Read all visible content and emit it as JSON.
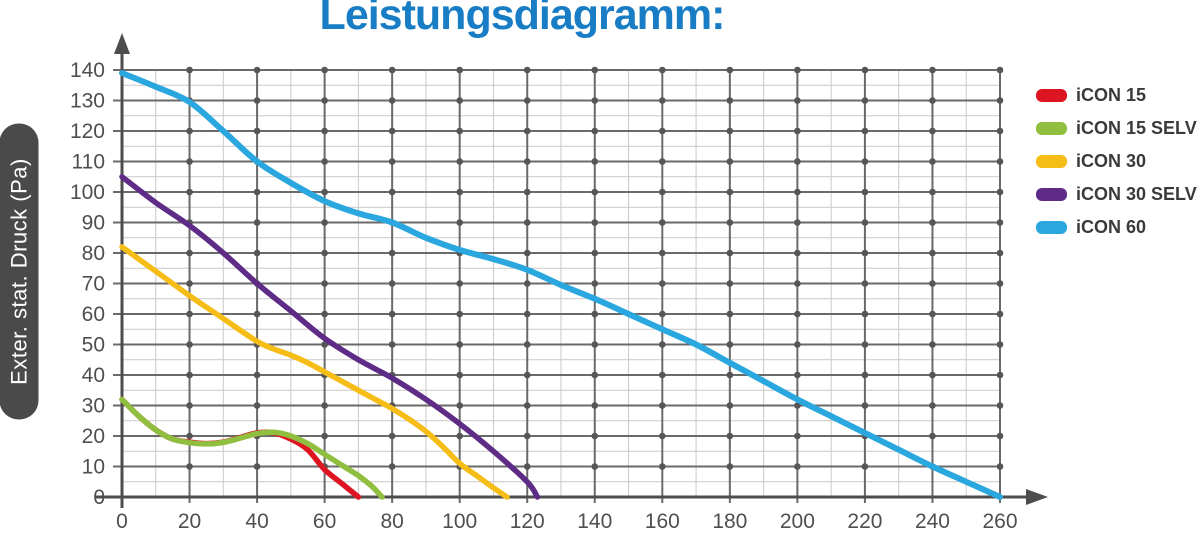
{
  "title": "Leistungsdiagramm:",
  "colors": {
    "title": "#187dc4",
    "axis": "#4d4d4d",
    "grid_major": "#6a6a6a",
    "grid_minor": "#c9c9c9",
    "grid_dot": "#565656",
    "tick_label": "#4f4f4f",
    "y_label_bg": "#4a4a4a",
    "y_label_text": "#ffffff",
    "legend_text": "#3a3a3a"
  },
  "y_axis": {
    "label": "Exter. stat. Druck (Pa)",
    "min": 0,
    "max": 140,
    "major_step": 10,
    "minor_step": 5
  },
  "x_axis": {
    "min": 0,
    "max": 260,
    "major_step": 20,
    "minor_step": 10
  },
  "legend": [
    {
      "label": "iCON 15",
      "color": "#dd1522"
    },
    {
      "label": "iCON 15 SELV",
      "color": "#90bf40"
    },
    {
      "label": "iCON 30",
      "color": "#f6bd17"
    },
    {
      "label": "iCON 30 SELV",
      "color": "#5e2b87"
    },
    {
      "label": "iCON 60",
      "color": "#2ba7e0"
    }
  ],
  "chart_data": {
    "type": "line",
    "title": "Leistungsdiagramm:",
    "xlabel": "",
    "ylabel": "Exter. stat. Druck (Pa)",
    "xlim": [
      0,
      260
    ],
    "ylim": [
      0,
      140
    ],
    "x_tick_step": 20,
    "y_tick_step": 10,
    "grid": true,
    "legend_position": "right",
    "series": [
      {
        "name": "iCON 15",
        "color": "#dd1522",
        "points": [
          [
            0,
            32
          ],
          [
            5,
            26.5
          ],
          [
            10,
            22
          ],
          [
            15,
            19
          ],
          [
            20,
            18
          ],
          [
            25,
            17.5
          ],
          [
            30,
            18
          ],
          [
            35,
            19.5
          ],
          [
            40,
            21
          ],
          [
            45,
            21
          ],
          [
            50,
            19
          ],
          [
            55,
            15.5
          ],
          [
            60,
            9
          ],
          [
            65,
            4.5
          ],
          [
            70,
            0
          ]
        ]
      },
      {
        "name": "iCON 15 SELV",
        "color": "#90bf40",
        "points": [
          [
            0,
            32
          ],
          [
            5,
            26.5
          ],
          [
            10,
            22
          ],
          [
            15,
            19
          ],
          [
            20,
            17.8
          ],
          [
            25,
            17.4
          ],
          [
            30,
            17.9
          ],
          [
            35,
            19.3
          ],
          [
            40,
            20.8
          ],
          [
            45,
            21.2
          ],
          [
            50,
            20
          ],
          [
            55,
            17.5
          ],
          [
            60,
            14
          ],
          [
            65,
            10.5
          ],
          [
            70,
            7
          ],
          [
            74,
            3.5
          ],
          [
            77,
            0
          ]
        ]
      },
      {
        "name": "iCON 30",
        "color": "#f6bd17",
        "points": [
          [
            0,
            82
          ],
          [
            10,
            74
          ],
          [
            20,
            66
          ],
          [
            30,
            58.5
          ],
          [
            40,
            51
          ],
          [
            45,
            48.5
          ],
          [
            50,
            46.5
          ],
          [
            55,
            44
          ],
          [
            60,
            41
          ],
          [
            65,
            38
          ],
          [
            70,
            35
          ],
          [
            75,
            32
          ],
          [
            80,
            29
          ],
          [
            85,
            25.5
          ],
          [
            90,
            21.5
          ],
          [
            95,
            16.5
          ],
          [
            100,
            11
          ],
          [
            105,
            7
          ],
          [
            110,
            3
          ],
          [
            114,
            0
          ]
        ]
      },
      {
        "name": "iCON 30 SELV",
        "color": "#5e2b87",
        "points": [
          [
            0,
            105
          ],
          [
            10,
            96.5
          ],
          [
            20,
            89
          ],
          [
            30,
            80
          ],
          [
            40,
            70
          ],
          [
            50,
            61
          ],
          [
            60,
            52
          ],
          [
            70,
            45
          ],
          [
            80,
            39
          ],
          [
            90,
            32
          ],
          [
            100,
            24
          ],
          [
            110,
            15
          ],
          [
            120,
            5
          ],
          [
            123,
            0
          ]
        ]
      },
      {
        "name": "iCON 60",
        "color": "#2ba7e0",
        "points": [
          [
            0,
            139
          ],
          [
            10,
            134.5
          ],
          [
            20,
            129.5
          ],
          [
            30,
            120
          ],
          [
            40,
            110
          ],
          [
            50,
            103
          ],
          [
            60,
            97
          ],
          [
            70,
            93
          ],
          [
            80,
            90
          ],
          [
            90,
            85
          ],
          [
            100,
            81
          ],
          [
            110,
            78
          ],
          [
            120,
            74.5
          ],
          [
            130,
            69.5
          ],
          [
            140,
            65
          ],
          [
            150,
            60
          ],
          [
            160,
            55
          ],
          [
            170,
            50
          ],
          [
            180,
            44
          ],
          [
            190,
            38
          ],
          [
            200,
            32
          ],
          [
            210,
            26.5
          ],
          [
            220,
            21
          ],
          [
            230,
            15.5
          ],
          [
            240,
            10
          ],
          [
            250,
            5
          ],
          [
            260,
            0
          ]
        ]
      }
    ]
  }
}
